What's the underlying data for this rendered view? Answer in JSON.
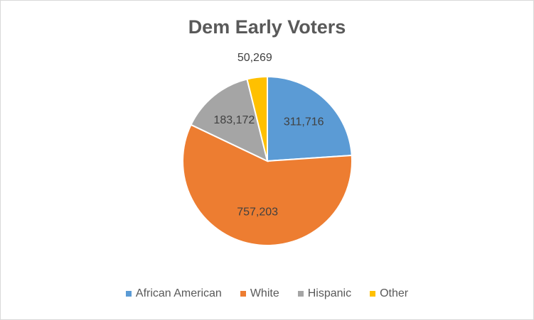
{
  "chart_data": {
    "type": "pie",
    "title": "Dem Early Voters",
    "categories": [
      "African American",
      "White",
      "Hispanic",
      "Other"
    ],
    "values": [
      311716,
      757203,
      183172,
      50269
    ],
    "labels": [
      "311,716",
      "757,203",
      "183,172",
      "50,269"
    ],
    "colors": [
      "#5B9BD5",
      "#ED7D31",
      "#A5A5A5",
      "#FFC000"
    ],
    "legend_position": "bottom",
    "start_angle": "12 o'clock, clockwise"
  }
}
